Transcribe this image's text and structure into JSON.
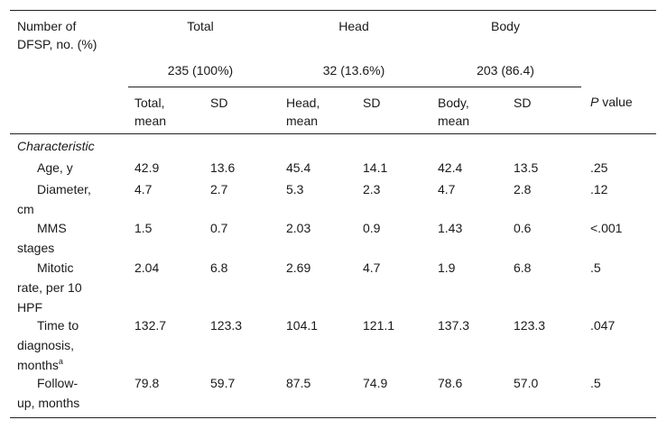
{
  "header": {
    "stub_line1": "Number of",
    "stub_line2": "DFSP, no. (%)",
    "groups": [
      {
        "name": "Total",
        "count": "235 (100%)"
      },
      {
        "name": "Head",
        "count": "32 (13.6%)"
      },
      {
        "name": "Body",
        "count": "203 (86.4)"
      }
    ],
    "subcols": {
      "total_mean_l1": "Total,",
      "total_mean_l2": "mean",
      "sd1": "SD",
      "head_mean_l1": "Head,",
      "head_mean_l2": "mean",
      "sd2": "SD",
      "body_mean_l1": "Body,",
      "body_mean_l2": "mean",
      "sd3": "SD",
      "p_italic": "P",
      "p_rest": " value"
    }
  },
  "section_label": "Characteristic",
  "rows": [
    {
      "label_lines": [
        "Age, y"
      ],
      "values": [
        "42.9",
        "13.6",
        "45.4",
        "14.1",
        "42.4",
        "13.5",
        ".25"
      ]
    },
    {
      "label_lines": [
        "Diameter,",
        "cm"
      ],
      "values": [
        "4.7",
        "2.7",
        "5.3",
        "2.3",
        "4.7",
        "2.8",
        ".12"
      ]
    },
    {
      "label_lines": [
        "MMS",
        "stages"
      ],
      "values": [
        "1.5",
        "0.7",
        "2.03",
        "0.9",
        "1.43",
        "0.6",
        "<.001"
      ]
    },
    {
      "label_lines": [
        "Mitotic",
        "rate, per 10",
        "HPF"
      ],
      "values": [
        "2.04",
        "6.8",
        "2.69",
        "4.7",
        "1.9",
        "6.8",
        ".5"
      ]
    },
    {
      "label_lines": [
        "Time to",
        "diagnosis,",
        "months"
      ],
      "label_sup": "a",
      "values": [
        "132.7",
        "123.3",
        "104.1",
        "121.1",
        "137.3",
        "123.3",
        ".047"
      ]
    },
    {
      "label_lines": [
        "Follow-",
        "up, months"
      ],
      "values": [
        "79.8",
        "59.7",
        "87.5",
        "74.9",
        "78.6",
        "57.0",
        ".5"
      ]
    }
  ]
}
